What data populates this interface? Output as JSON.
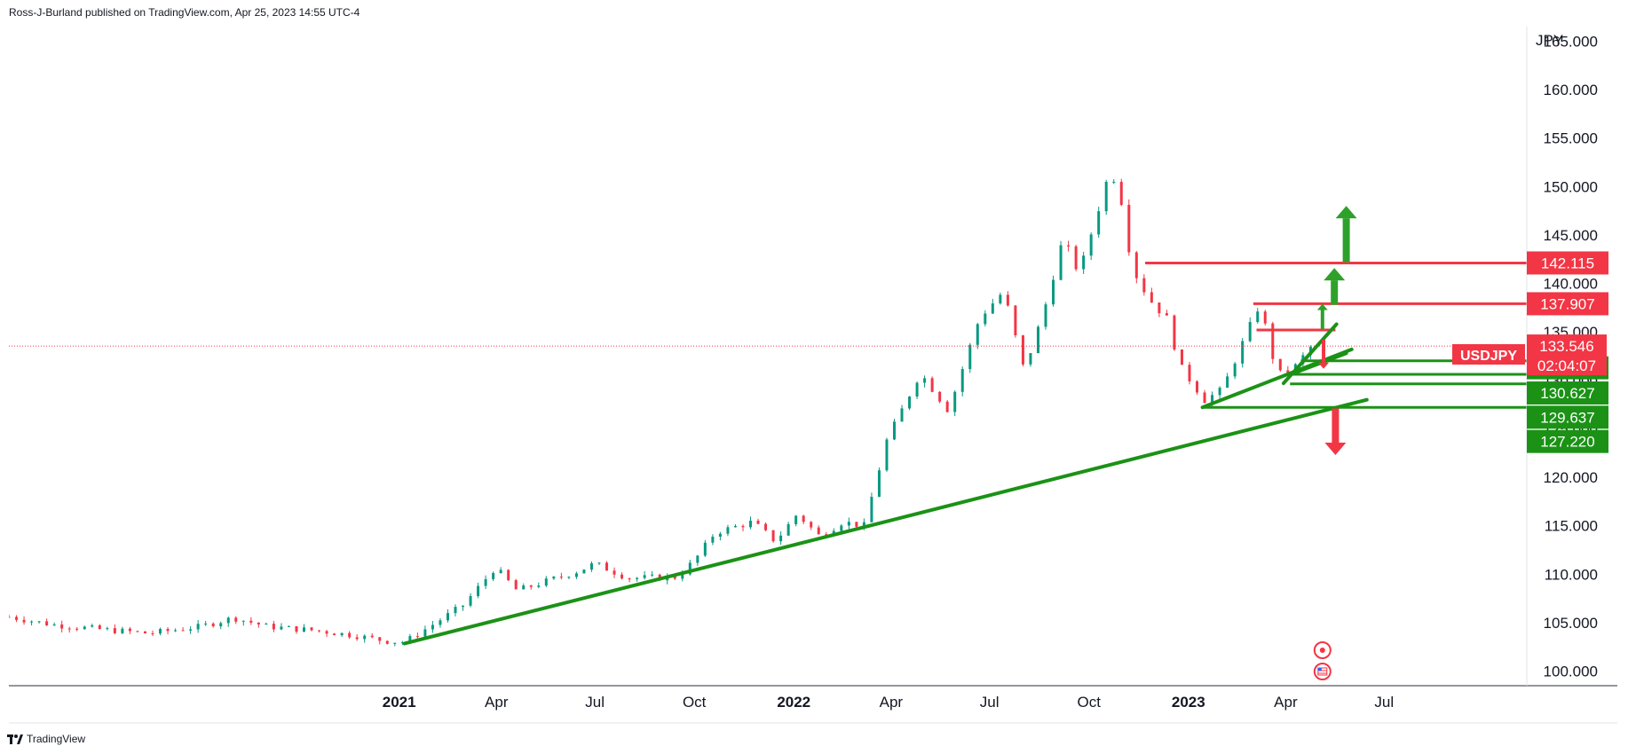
{
  "header": {
    "publisher_line": "Ross-J-Burland published on TradingView.com, Apr 25, 2023 14:55 UTC-4"
  },
  "footer": {
    "brand": "TradingView",
    "logo_icon": "tradingview-logo-icon"
  },
  "colors": {
    "up": "#089981",
    "down": "#f23645",
    "support": "#1b9216",
    "resistance": "#f23645",
    "arrow_up": "#2ea12a",
    "arrow_down": "#f23645"
  },
  "chart_data": {
    "type": "candlestick",
    "symbol": "USDJPY",
    "currency": "JPY",
    "ylim": [
      98.5,
      166.5
    ],
    "y_ticks": [
      "100.000",
      "105.000",
      "110.000",
      "115.000",
      "120.000",
      "125.000",
      "130.000",
      "135.000",
      "140.000",
      "145.000",
      "150.000",
      "155.000",
      "160.000",
      "165.000"
    ],
    "x_ticks": [
      {
        "label": "2021",
        "date": "2021-01-01",
        "bold": true
      },
      {
        "label": "Apr",
        "date": "2021-04-01",
        "bold": false
      },
      {
        "label": "Jul",
        "date": "2021-07-01",
        "bold": false
      },
      {
        "label": "Oct",
        "date": "2021-10-01",
        "bold": false
      },
      {
        "label": "2022",
        "date": "2022-01-01",
        "bold": true
      },
      {
        "label": "Apr",
        "date": "2022-04-01",
        "bold": false
      },
      {
        "label": "Jul",
        "date": "2022-07-01",
        "bold": false
      },
      {
        "label": "Oct",
        "date": "2022-10-01",
        "bold": false
      },
      {
        "label": "2023",
        "date": "2023-01-01",
        "bold": true
      },
      {
        "label": "Apr",
        "date": "2023-04-01",
        "bold": false
      },
      {
        "label": "Jul",
        "date": "2023-07-01",
        "bold": false
      }
    ],
    "x_range": [
      "2020-01-06",
      "2023-11-10"
    ],
    "price_path": [
      [
        "2020-01-06",
        105.6
      ],
      [
        "2020-02-15",
        104.8
      ],
      [
        "2020-04-01",
        104.3
      ],
      [
        "2020-05-15",
        103.9
      ],
      [
        "2020-07-01",
        104.6
      ],
      [
        "2020-08-01",
        105.5
      ],
      [
        "2020-09-01",
        104.6
      ],
      [
        "2020-10-15",
        104.2
      ],
      [
        "2020-11-20",
        103.7
      ],
      [
        "2020-12-20",
        103.1
      ],
      [
        "2021-01-06",
        103.0
      ],
      [
        "2021-02-01",
        104.8
      ],
      [
        "2021-03-01",
        106.8
      ],
      [
        "2021-03-31",
        110.7
      ],
      [
        "2021-04-20",
        108.3
      ],
      [
        "2021-05-15",
        109.2
      ],
      [
        "2021-06-15",
        110.3
      ],
      [
        "2021-07-01",
        111.1
      ],
      [
        "2021-08-01",
        109.6
      ],
      [
        "2021-09-15",
        109.7
      ],
      [
        "2021-10-01",
        111.4
      ],
      [
        "2021-10-20",
        114.3
      ],
      [
        "2021-11-24",
        115.4
      ],
      [
        "2021-12-15",
        113.4
      ],
      [
        "2022-01-04",
        116.2
      ],
      [
        "2022-01-25",
        113.9
      ],
      [
        "2022-02-15",
        115.4
      ],
      [
        "2022-03-07",
        115.0
      ],
      [
        "2022-03-28",
        123.8
      ],
      [
        "2022-04-28",
        130.8
      ],
      [
        "2022-05-24",
        126.9
      ],
      [
        "2022-06-22",
        136.5
      ],
      [
        "2022-07-14",
        139.2
      ],
      [
        "2022-08-02",
        131.0
      ],
      [
        "2022-08-20",
        137.0
      ],
      [
        "2022-09-07",
        144.6
      ],
      [
        "2022-09-22",
        141.0
      ],
      [
        "2022-10-21",
        151.9
      ],
      [
        "2022-10-31",
        148.5
      ],
      [
        "2022-11-10",
        141.6
      ],
      [
        "2022-11-25",
        138.5
      ],
      [
        "2022-12-15",
        136.0
      ],
      [
        "2022-12-22",
        131.8
      ],
      [
        "2023-01-16",
        128.0
      ],
      [
        "2023-02-01",
        129.0
      ],
      [
        "2023-03-08",
        137.9
      ],
      [
        "2023-03-24",
        130.6
      ],
      [
        "2023-04-06",
        130.9
      ],
      [
        "2023-04-25",
        133.546
      ]
    ],
    "horizontal_levels": [
      {
        "price": 142.115,
        "role": "resistance",
        "from": "2022-11-22",
        "to": "2023-11-10"
      },
      {
        "price": 137.907,
        "role": "resistance",
        "from": "2023-03-02",
        "to": "2023-11-10"
      },
      {
        "price": 135.2,
        "role": "resistance",
        "from": "2023-03-05",
        "to": "2023-05-17"
      },
      {
        "price": 132.017,
        "role": "support",
        "from": "2023-04-15",
        "to": "2023-11-10"
      },
      {
        "price": 130.627,
        "role": "support",
        "from": "2023-04-05",
        "to": "2023-11-10"
      },
      {
        "price": 129.637,
        "role": "support",
        "from": "2023-04-05",
        "to": "2023-11-10"
      },
      {
        "price": 127.22,
        "role": "support",
        "from": "2023-01-14",
        "to": "2023-11-10"
      }
    ],
    "trendlines": [
      {
        "from": [
          "2021-01-06",
          102.85
        ],
        "to": [
          "2023-06-15",
          128.0
        ]
      },
      {
        "from": [
          "2023-01-14",
          127.22
        ],
        "to": [
          "2023-06-01",
          133.2
        ]
      },
      {
        "from": [
          "2023-03-30",
          129.7
        ],
        "to": [
          "2023-05-18",
          135.8
        ]
      },
      {
        "from": [
          "2023-04-05",
          130.6
        ],
        "to": [
          "2023-05-27",
          132.8
        ]
      }
    ],
    "arrows": [
      {
        "date": "2023-05-27",
        "from": 142.2,
        "to": 148.0,
        "dir": "up",
        "size": "large"
      },
      {
        "date": "2023-05-16",
        "from": 137.8,
        "to": 141.6,
        "dir": "up",
        "size": "large"
      },
      {
        "date": "2023-05-05",
        "from": 135.3,
        "to": 137.9,
        "dir": "up",
        "size": "small"
      },
      {
        "date": "2023-05-06",
        "from": 134.2,
        "to": 131.2,
        "dir": "down",
        "size": "small"
      },
      {
        "date": "2023-05-17",
        "from": 127.1,
        "to": 122.3,
        "dir": "down",
        "size": "large"
      }
    ],
    "current_price": 133.546,
    "countdown": "02:04:07",
    "price_labels": [
      {
        "text": "142.115",
        "price": 142.115,
        "color": "#f23645"
      },
      {
        "text": "137.907",
        "price": 137.907,
        "color": "#f23645"
      },
      {
        "text": "132.017",
        "price": 131.3,
        "color": "#1b9216"
      },
      {
        "text": "130.627",
        "price": 128.7,
        "color": "#1b9216"
      },
      {
        "text": "129.637",
        "price": 126.2,
        "color": "#1b9216"
      },
      {
        "text": "127.220",
        "price": 123.7,
        "color": "#1b9216"
      }
    ],
    "event_icons": [
      {
        "name": "economic-event-icon",
        "date": "2023-05-05",
        "row": 1
      },
      {
        "name": "us-flag-event-icon",
        "date": "2023-05-05",
        "row": 2
      }
    ],
    "grid": false
  }
}
